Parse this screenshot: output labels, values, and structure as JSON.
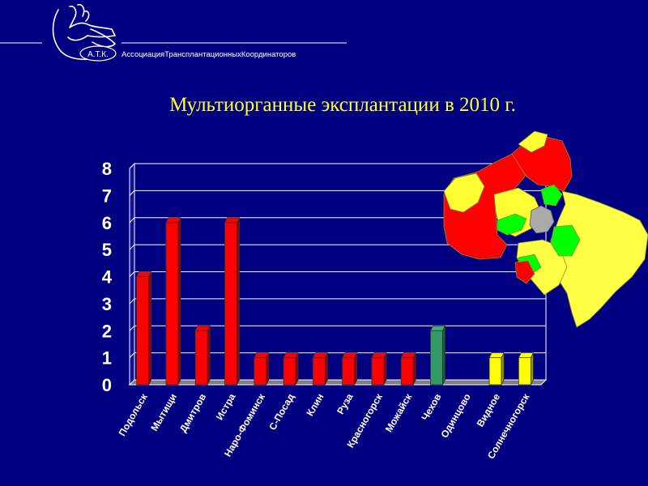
{
  "header": {
    "logo_text": "А.Т.К.",
    "organization": "АссоциацияТрансплантационныхКоординаторов"
  },
  "chart_data": {
    "type": "bar",
    "title": "Мультиорганные эксплантации в 2010 г.",
    "categories": [
      "Подольск",
      "Мытищи",
      "Дмитров",
      "Истра",
      "Наро-Фоминск",
      "С-Посад",
      "Клин",
      "Руза",
      "Красногорск",
      "Можайск",
      "Чехов",
      "Одинцово",
      "Видное",
      "Солнечногорск"
    ],
    "values": [
      4,
      6,
      2,
      6,
      1,
      1,
      1,
      1,
      1,
      1,
      2,
      0,
      1,
      1
    ],
    "bar_colors": [
      "#ff0000",
      "#ff0000",
      "#ff0000",
      "#ff0000",
      "#ff0000",
      "#ff0000",
      "#ff0000",
      "#ff0000",
      "#ff0000",
      "#ff0000",
      "#339966",
      "#ff0000",
      "#ffff00",
      "#ffff00"
    ],
    "ylim": [
      0,
      8
    ],
    "yticks": [
      "0",
      "1",
      "2",
      "3",
      "4",
      "5",
      "6",
      "7",
      "8"
    ],
    "grid": true,
    "legend": "none"
  }
}
